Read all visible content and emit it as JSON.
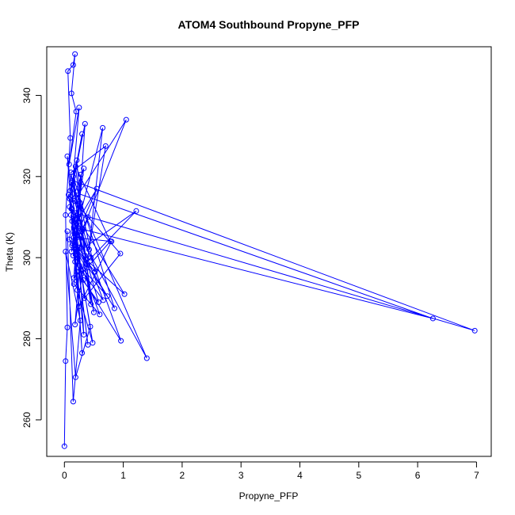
{
  "chart_data": {
    "type": "line",
    "title": "ATOM4 Southbound Propyne_PFP",
    "xlabel": "Propyne_PFP",
    "ylabel": "Theta (K)",
    "xlim": [
      -0.3,
      7.25
    ],
    "ylim": [
      251,
      352
    ],
    "x_ticks": [
      0,
      1,
      2,
      3,
      4,
      5,
      6,
      7
    ],
    "y_ticks": [
      260,
      280,
      300,
      320,
      340
    ],
    "grid": false,
    "legend": "none",
    "series": [
      {
        "color": "#0000ff",
        "marker": "open-circle",
        "x": [
          0.0,
          0.02,
          0.05,
          0.02,
          0.1,
          0.06,
          0.15,
          0.18,
          0.12,
          0.2,
          0.08,
          0.25,
          0.14,
          0.3,
          0.1,
          0.35,
          0.22,
          0.05,
          0.18,
          0.4,
          0.12,
          0.28,
          0.16,
          0.45,
          0.09,
          0.33,
          0.2,
          0.55,
          0.13,
          0.38,
          0.65,
          0.24,
          0.11,
          0.7,
          0.42,
          0.17,
          1.05,
          0.3,
          0.14,
          6.97,
          0.19,
          0.08,
          0.52,
          0.27,
          0.15,
          1.22,
          0.36,
          0.21,
          0.1,
          6.26,
          0.31,
          0.16,
          0.6,
          0.23,
          0.07,
          0.95,
          0.34,
          0.18,
          0.12,
          1.4,
          0.26,
          0.45,
          0.19,
          0.78,
          0.29,
          0.13,
          1.02,
          0.37,
          0.21,
          0.5,
          0.15,
          0.85,
          0.24,
          0.33,
          0.11,
          0.66,
          0.28,
          0.17,
          0.4,
          0.09,
          0.96,
          0.32,
          0.2,
          0.16,
          0.48,
          0.22,
          0.14,
          0.73,
          0.26,
          0.18,
          0.35,
          0.12,
          0.58,
          0.21,
          0.3,
          0.16,
          0.8,
          0.25,
          0.13,
          0.44,
          0.19,
          0.02,
          0.27,
          0.15,
          0.05
        ],
        "y": [
          253.5,
          274.5,
          282.8,
          310.5,
          329.5,
          346.0,
          347.5,
          350.2,
          340.5,
          336.0,
          323.0,
          337.0,
          318.0,
          330.5,
          315.0,
          333.0,
          305.0,
          325.0,
          299.0,
          310.0,
          301.5,
          320.5,
          295.0,
          300.0,
          312.5,
          322.0,
          308.5,
          317.0,
          303.0,
          297.5,
          332.0,
          309.0,
          321.0,
          327.5,
          302.0,
          314.0,
          334.0,
          306.5,
          319.0,
          282.0,
          311.0,
          304.5,
          296.5,
          313.5,
          300.5,
          311.5,
          298.5,
          324.0,
          316.5,
          285.0,
          307.0,
          293.5,
          286.0,
          300.0,
          315.5,
          301.0,
          290.0,
          309.5,
          318.5,
          275.2,
          305.5,
          288.5,
          322.5,
          304.0,
          296.0,
          312.0,
          291.0,
          299.5,
          308.0,
          286.5,
          320.0,
          287.5,
          302.5,
          281.0,
          310.5,
          289.5,
          297.0,
          306.0,
          278.5,
          314.5,
          279.5,
          294.5,
          301.5,
          307.5,
          279.0,
          292.0,
          303.5,
          290.5,
          298.0,
          283.5,
          300.5,
          312.0,
          289.0,
          296.5,
          276.5,
          305.0,
          304.0,
          288.0,
          309.0,
          283.0,
          270.5,
          301.5,
          284.5,
          264.5,
          306.5
        ]
      }
    ]
  }
}
